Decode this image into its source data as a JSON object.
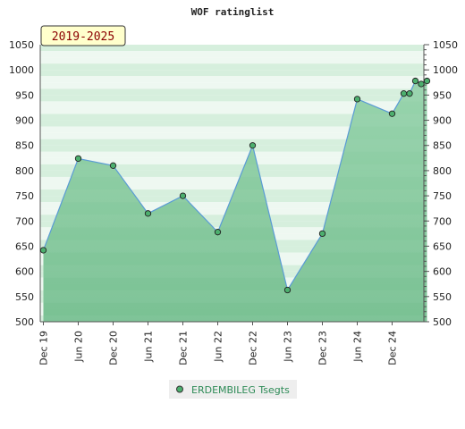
{
  "chart_data": {
    "type": "area",
    "title": "WOF ratinglist",
    "period_badge": "2019-2025",
    "ylim": [
      500,
      1050
    ],
    "y_ticks": [
      500,
      550,
      600,
      650,
      700,
      750,
      800,
      850,
      900,
      950,
      1000,
      1050
    ],
    "x_ticks": [
      "Dec 19",
      "Jun 20",
      "Dec 20",
      "Jun 21",
      "Dec 21",
      "Jun 22",
      "Dec 22",
      "Jun 23",
      "Dec 23",
      "Jun 24",
      "Dec 24"
    ],
    "grid": true,
    "legend_position": "bottom",
    "series": [
      {
        "name": "ERDEMBILEG Tsegts",
        "x": [
          "Dec 19",
          "Jun 20",
          "Dec 20",
          "Jun 21",
          "Dec 21",
          "Jun 22",
          "Dec 22",
          "Jun 23",
          "Dec 23",
          "Jun 24",
          "Dec 24",
          "Feb 25",
          "Mar 25",
          "Apr 25",
          "May 25",
          "Jun 25"
        ],
        "values": [
          642,
          824,
          810,
          715,
          750,
          678,
          850,
          563,
          675,
          942,
          913,
          953,
          953,
          978,
          972,
          978
        ]
      }
    ],
    "colors": {
      "line": "#5a9bd5",
      "marker_fill": "#4caf6e",
      "area_dark": "#7cc496",
      "area_light": "#e8f5ec",
      "legend_text": "#2e8b57",
      "badge_bg": "#ffffcc",
      "badge_text": "#8b0000"
    }
  }
}
